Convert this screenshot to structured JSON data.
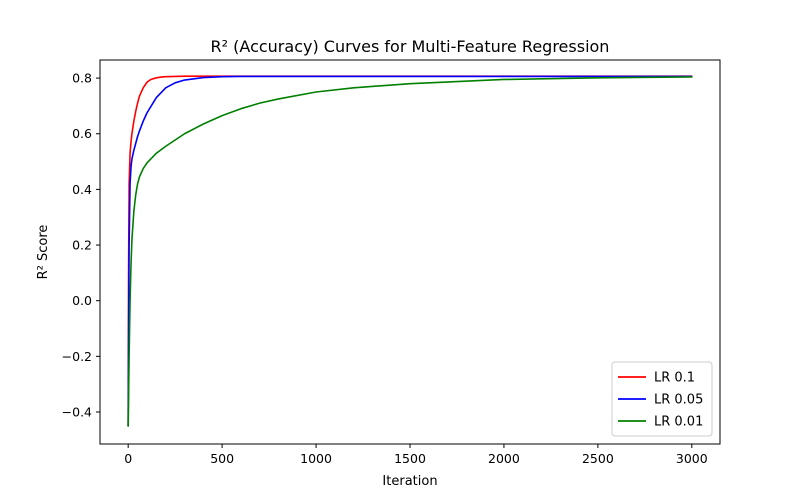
{
  "chart_data": {
    "type": "line",
    "title": "R² (Accuracy) Curves for Multi-Feature Regression",
    "xlabel": "Iteration",
    "ylabel": "R² Score",
    "xlim": [
      -150,
      3150
    ],
    "ylim": [
      -0.515,
      0.865
    ],
    "x_ticks": [
      0,
      500,
      1000,
      1500,
      2000,
      2500,
      3000
    ],
    "x_tick_labels": [
      "0",
      "500",
      "1000",
      "1500",
      "2000",
      "2500",
      "3000"
    ],
    "y_ticks": [
      -0.4,
      -0.2,
      0.0,
      0.2,
      0.4,
      0.6,
      0.8
    ],
    "y_tick_labels": [
      "−0.4",
      "−0.2",
      "0.0",
      "0.2",
      "0.4",
      "0.6",
      "0.8"
    ],
    "grid": false,
    "legend_position": "bottom-right",
    "series": [
      {
        "name": "LR 0.1",
        "color": "#ff0000",
        "x": [
          0,
          2,
          5,
          10,
          15,
          20,
          30,
          40,
          50,
          60,
          80,
          100,
          120,
          150,
          180,
          200,
          250,
          300,
          400,
          500,
          1000,
          2000,
          3000
        ],
        "y": [
          -0.45,
          0.1,
          0.42,
          0.53,
          0.57,
          0.6,
          0.645,
          0.68,
          0.71,
          0.735,
          0.765,
          0.785,
          0.795,
          0.801,
          0.804,
          0.805,
          0.806,
          0.807,
          0.807,
          0.807,
          0.807,
          0.807,
          0.807
        ]
      },
      {
        "name": "LR 0.05",
        "color": "#0000ff",
        "x": [
          0,
          2,
          5,
          10,
          15,
          20,
          30,
          40,
          50,
          60,
          80,
          100,
          150,
          200,
          250,
          300,
          400,
          500,
          600,
          800,
          1000,
          2000,
          3000
        ],
        "y": [
          -0.45,
          -0.15,
          0.2,
          0.42,
          0.48,
          0.51,
          0.54,
          0.565,
          0.59,
          0.61,
          0.645,
          0.675,
          0.73,
          0.765,
          0.783,
          0.793,
          0.802,
          0.805,
          0.806,
          0.806,
          0.806,
          0.806,
          0.806
        ]
      },
      {
        "name": "LR 0.01",
        "color": "#008000",
        "x": [
          0,
          2,
          5,
          10,
          15,
          20,
          30,
          40,
          50,
          60,
          80,
          100,
          150,
          200,
          300,
          400,
          500,
          600,
          700,
          800,
          1000,
          1200,
          1500,
          2000,
          2500,
          3000
        ],
        "y": [
          -0.45,
          -0.35,
          -0.2,
          0.0,
          0.13,
          0.22,
          0.32,
          0.38,
          0.42,
          0.445,
          0.475,
          0.495,
          0.53,
          0.555,
          0.6,
          0.635,
          0.665,
          0.69,
          0.71,
          0.725,
          0.75,
          0.765,
          0.78,
          0.795,
          0.801,
          0.804
        ]
      }
    ]
  }
}
